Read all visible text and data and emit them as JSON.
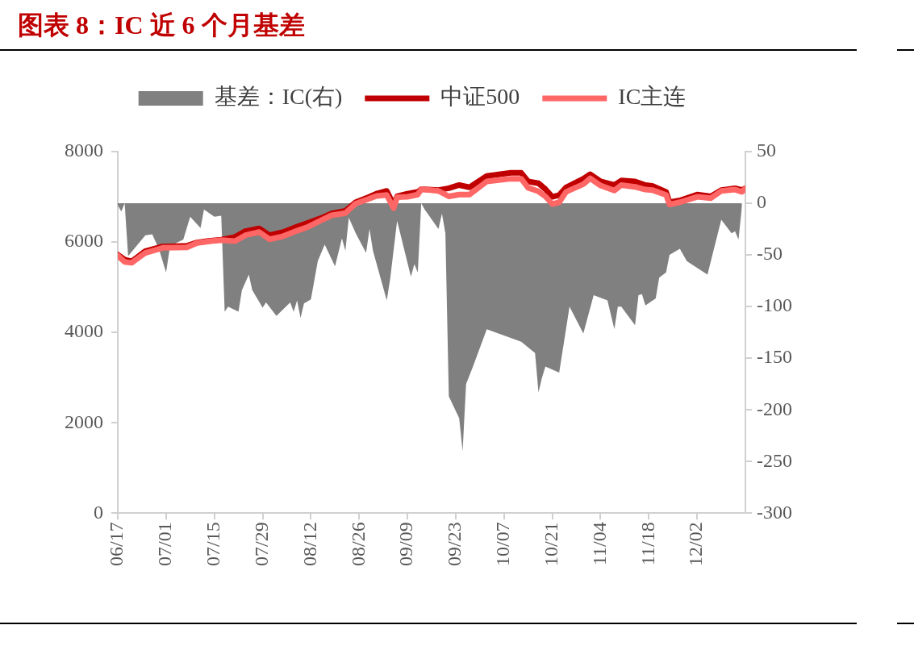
{
  "chart_data": {
    "type": "line",
    "title": "图表 8：IC 近 6 个月基差",
    "xlim": [
      "--06-17",
      "--12-16"
    ],
    "xticks": [
      {
        "value": "--06-17",
        "label": "06/17"
      },
      {
        "value": "--07-01",
        "label": "07/01"
      },
      {
        "value": "--07-15",
        "label": "07/15"
      },
      {
        "value": "--07-29",
        "label": "07/29"
      },
      {
        "value": "--08-12",
        "label": "08/12"
      },
      {
        "value": "--08-26",
        "label": "08/26"
      },
      {
        "value": "--09-09",
        "label": "09/09"
      },
      {
        "value": "--09-23",
        "label": "09/23"
      },
      {
        "value": "--10-07",
        "label": "10/07"
      },
      {
        "value": "--10-21",
        "label": "10/21"
      },
      {
        "value": "--11-04",
        "label": "11/04"
      },
      {
        "value": "--11-18",
        "label": "11/18"
      },
      {
        "value": "--12-02",
        "label": "12/02"
      }
    ],
    "ylim": [
      0,
      8000
    ],
    "yticks": [
      0,
      2000,
      4000,
      6000,
      8000
    ],
    "y2lim": [
      -300,
      50
    ],
    "y2ticks": [
      -300,
      -250,
      -200,
      -150,
      -100,
      -50,
      0,
      50
    ],
    "grid": false,
    "legend": "top",
    "marker": "none",
    "series": [
      {
        "name": "基差：IC(右)",
        "type": "area",
        "axis": "y2",
        "color": "#808080",
        "x": [
          "--06-17",
          "--06-18",
          "--06-19",
          "--06-20",
          "--06-25",
          "--06-27",
          "--06-29",
          "--07-01",
          "--07-02",
          "--07-03",
          "--07-06",
          "--07-08",
          "--07-11",
          "--07-12",
          "--07-15",
          "--07-17",
          "--07-18",
          "--07-19",
          "--07-22",
          "--07-23",
          "--07-25",
          "--07-26",
          "--07-29",
          "--07-30",
          "--08-02",
          "--08-06",
          "--08-07",
          "--08-08",
          "--08-09",
          "--08-10",
          "--08-12",
          "--08-14",
          "--08-16",
          "--08-19",
          "--08-21",
          "--08-22",
          "--08-23",
          "--08-25",
          "--08-28",
          "--08-29",
          "--08-30",
          "--09-03",
          "--09-04",
          "--09-06",
          "--09-10",
          "--09-11",
          "--09-12",
          "--09-13",
          "--09-14",
          "--09-18",
          "--09-19",
          "--09-20",
          "--09-21",
          "--09-24",
          "--09-25",
          "--09-26",
          "--09-28",
          "--10-02",
          "--10-12",
          "--10-16",
          "--10-17",
          "--10-18",
          "--10-19",
          "--10-23",
          "--10-26",
          "--10-30",
          "--11-02",
          "--11-06",
          "--11-08",
          "--11-09",
          "--11-10",
          "--11-14",
          "--11-15",
          "--11-16",
          "--11-17",
          "--11-20",
          "--11-21",
          "--11-23",
          "--11-24",
          "--11-27",
          "--11-29",
          "--12-05",
          "--12-09",
          "--12-12",
          "--12-13",
          "--12-14",
          "--12-15"
        ],
        "values": [
          -2,
          -8,
          0,
          -51,
          -31,
          -30,
          -45,
          -67,
          -45,
          -40,
          -35,
          -13,
          -24,
          -6,
          -13,
          -12,
          -105,
          -100,
          -105,
          -84,
          -69,
          -84,
          -101,
          -96,
          -109,
          -96,
          -105,
          -94,
          -111,
          -97,
          -93,
          -56,
          -40,
          -61,
          -34,
          -46,
          -14,
          -29,
          -48,
          -25,
          -46,
          -94,
          -73,
          -17,
          -71,
          -59,
          -67,
          0,
          -6,
          -25,
          -10,
          -29,
          -187,
          -208,
          -240,
          -175,
          -158,
          -122,
          -134,
          -145,
          -183,
          -169,
          -158,
          -164,
          -100,
          -126,
          -89,
          -94,
          -122,
          -100,
          -100,
          -118,
          -89,
          -88,
          -99,
          -92,
          -72,
          -67,
          -50,
          -44,
          -56,
          -69,
          -16,
          -29,
          -27,
          -35,
          -3
        ]
      },
      {
        "name": "中证500",
        "type": "line",
        "color": "#c00000",
        "x": [
          "--06-17",
          "--06-19",
          "--06-21",
          "--06-25",
          "--06-30",
          "--07-07",
          "--07-10",
          "--07-14",
          "--07-17",
          "--07-21",
          "--07-24",
          "--07-28",
          "--07-31",
          "--08-04",
          "--08-08",
          "--08-11",
          "--08-15",
          "--08-18",
          "--08-22",
          "--08-25",
          "--08-29",
          "--08-31",
          "--09-03",
          "--09-05",
          "--09-06",
          "--09-09",
          "--09-12",
          "--09-13",
          "--09-18",
          "--09-21",
          "--09-24",
          "--09-27",
          "--10-02",
          "--10-09",
          "--10-12",
          "--10-14",
          "--10-17",
          "--10-19",
          "--10-21",
          "--10-23",
          "--10-25",
          "--10-30",
          "--11-01",
          "--11-04",
          "--11-08",
          "--11-10",
          "--11-14",
          "--11-17",
          "--11-19",
          "--11-23",
          "--11-24",
          "--11-27",
          "--12-02",
          "--12-06",
          "--12-09",
          "--12-13",
          "--12-15",
          "--12-16"
        ],
        "values": [
          5720,
          5610,
          5570,
          5800,
          5900,
          5915,
          5990,
          6030,
          6050,
          6110,
          6240,
          6300,
          6150,
          6220,
          6340,
          6420,
          6530,
          6630,
          6690,
          6880,
          7000,
          7070,
          7130,
          6820,
          7010,
          7070,
          7110,
          7170,
          7150,
          7190,
          7260,
          7210,
          7460,
          7530,
          7530,
          7340,
          7300,
          7170,
          7000,
          7040,
          7210,
          7400,
          7500,
          7340,
          7260,
          7360,
          7340,
          7260,
          7240,
          7110,
          6880,
          6920,
          7050,
          7010,
          7150,
          7190,
          7150,
          7190
        ]
      },
      {
        "name": "IC主连",
        "type": "line",
        "color": "#ff6666",
        "x": [
          "--06-17",
          "--06-19",
          "--06-21",
          "--06-25",
          "--06-30",
          "--07-07",
          "--07-10",
          "--07-14",
          "--07-17",
          "--07-21",
          "--07-24",
          "--07-28",
          "--07-31",
          "--08-04",
          "--08-08",
          "--08-11",
          "--08-15",
          "--08-18",
          "--08-22",
          "--08-25",
          "--08-29",
          "--08-31",
          "--09-03",
          "--09-05",
          "--09-06",
          "--09-09",
          "--09-12",
          "--09-13",
          "--09-18",
          "--09-21",
          "--09-24",
          "--09-27",
          "--10-02",
          "--10-09",
          "--10-12",
          "--10-14",
          "--10-17",
          "--10-19",
          "--10-21",
          "--10-23",
          "--10-25",
          "--10-30",
          "--11-01",
          "--11-04",
          "--11-08",
          "--11-10",
          "--11-14",
          "--11-17",
          "--11-19",
          "--11-23",
          "--11-24",
          "--11-27",
          "--12-02",
          "--12-06",
          "--12-09",
          "--12-13",
          "--12-15",
          "--12-16"
        ],
        "values": [
          5700,
          5560,
          5540,
          5760,
          5870,
          5880,
          5980,
          6020,
          6040,
          6020,
          6150,
          6220,
          6060,
          6130,
          6250,
          6330,
          6480,
          6590,
          6640,
          6850,
          6960,
          7020,
          7040,
          6750,
          6990,
          7000,
          7050,
          7170,
          7130,
          7010,
          7050,
          7050,
          7340,
          7400,
          7400,
          7200,
          7120,
          7010,
          6840,
          6880,
          7110,
          7280,
          7410,
          7250,
          7140,
          7260,
          7220,
          7160,
          7150,
          7040,
          6830,
          6880,
          7000,
          6970,
          7130,
          7160,
          7110,
          7190
        ]
      }
    ]
  }
}
